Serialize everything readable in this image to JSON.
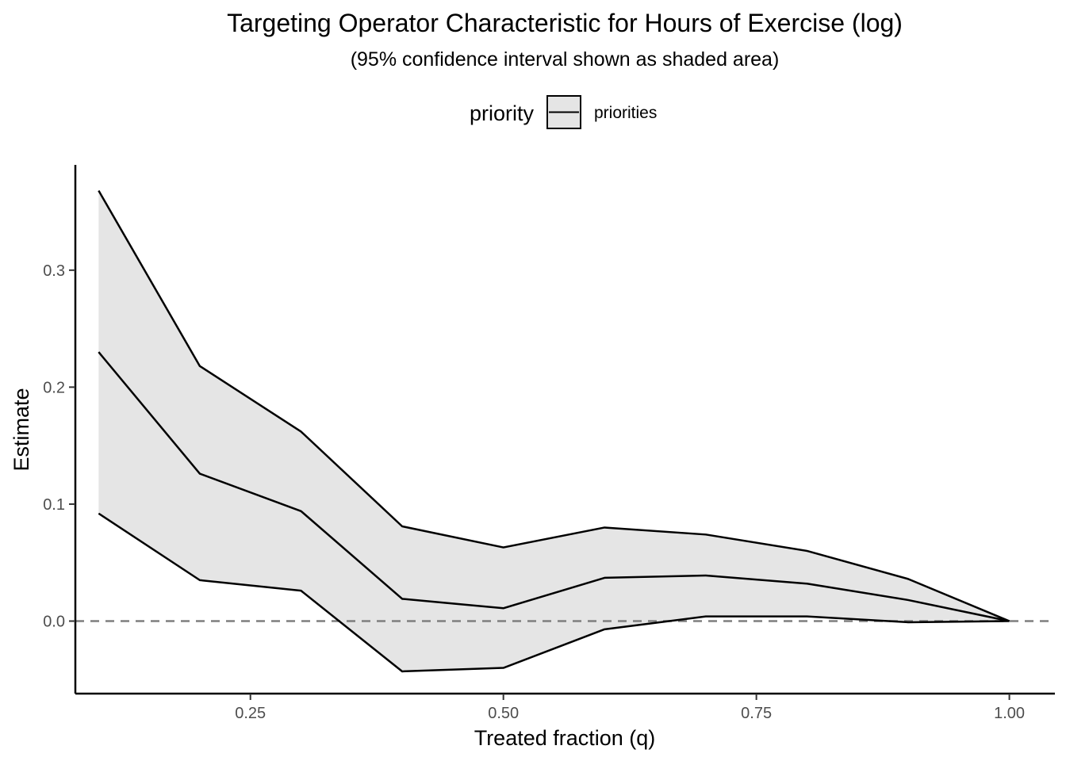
{
  "chart_data": {
    "type": "line",
    "title": "Targeting Operator Characteristic for Hours of Exercise (log)",
    "subtitle": "(95% confidence interval shown as shaded area)",
    "xlabel": "Treated fraction (q)",
    "ylabel": "Estimate",
    "xlim": [
      0.077,
      1.045
    ],
    "ylim": [
      -0.062,
      0.39
    ],
    "xticks": [
      0.25,
      0.5,
      0.75,
      1.0
    ],
    "xtick_labels": [
      "0.25",
      "0.50",
      "0.75",
      "1.00"
    ],
    "yticks": [
      0.0,
      0.1,
      0.2,
      0.3
    ],
    "ytick_labels": [
      "0.0",
      "0.1",
      "0.2",
      "0.3"
    ],
    "x": [
      0.1,
      0.2,
      0.3,
      0.4,
      0.5,
      0.6,
      0.7,
      0.8,
      0.9,
      1.0
    ],
    "series": [
      {
        "name": "priorities",
        "values": [
          0.23,
          0.126,
          0.094,
          0.019,
          0.011,
          0.037,
          0.039,
          0.032,
          0.018,
          0.0
        ],
        "lower": [
          0.092,
          0.035,
          0.026,
          -0.043,
          -0.04,
          -0.007,
          0.004,
          0.004,
          -0.001,
          0.0
        ],
        "upper": [
          0.368,
          0.218,
          0.162,
          0.081,
          0.063,
          0.08,
          0.074,
          0.06,
          0.036,
          0.0
        ]
      }
    ],
    "reference_line": {
      "y": 0.0,
      "style": "dashed"
    },
    "legend": {
      "title": "priority",
      "placement": "top"
    },
    "grid": false,
    "colors": {
      "line": "#000000",
      "ribbon": "#e5e5e5",
      "reference": "#7f7f7f"
    }
  }
}
